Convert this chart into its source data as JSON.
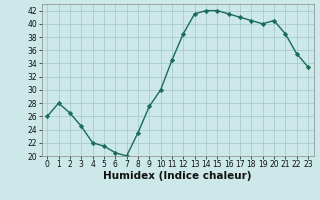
{
  "x": [
    0,
    1,
    2,
    3,
    4,
    5,
    6,
    7,
    8,
    9,
    10,
    11,
    12,
    13,
    14,
    15,
    16,
    17,
    18,
    19,
    20,
    21,
    22,
    23
  ],
  "y": [
    26,
    28,
    26.5,
    24.5,
    22,
    21.5,
    20.5,
    20,
    23.5,
    27.5,
    30,
    34.5,
    38.5,
    41.5,
    42,
    42,
    41.5,
    41,
    40.5,
    40,
    40.5,
    38.5,
    35.5,
    33.5
  ],
  "line_color": "#1a6b5a",
  "marker": "D",
  "marker_size": 2.2,
  "bg_color": "#cce8e8",
  "grid_color": "#aacccc",
  "xlabel": "Humidex (Indice chaleur)",
  "ylim": [
    20,
    43
  ],
  "xlim": [
    -0.5,
    23.5
  ],
  "yticks": [
    20,
    22,
    24,
    26,
    28,
    30,
    32,
    34,
    36,
    38,
    40,
    42
  ],
  "xticks": [
    0,
    1,
    2,
    3,
    4,
    5,
    6,
    7,
    8,
    9,
    10,
    11,
    12,
    13,
    14,
    15,
    16,
    17,
    18,
    19,
    20,
    21,
    22,
    23
  ],
  "tick_fontsize": 5.5,
  "xlabel_fontsize": 7.5,
  "linewidth": 1.0
}
